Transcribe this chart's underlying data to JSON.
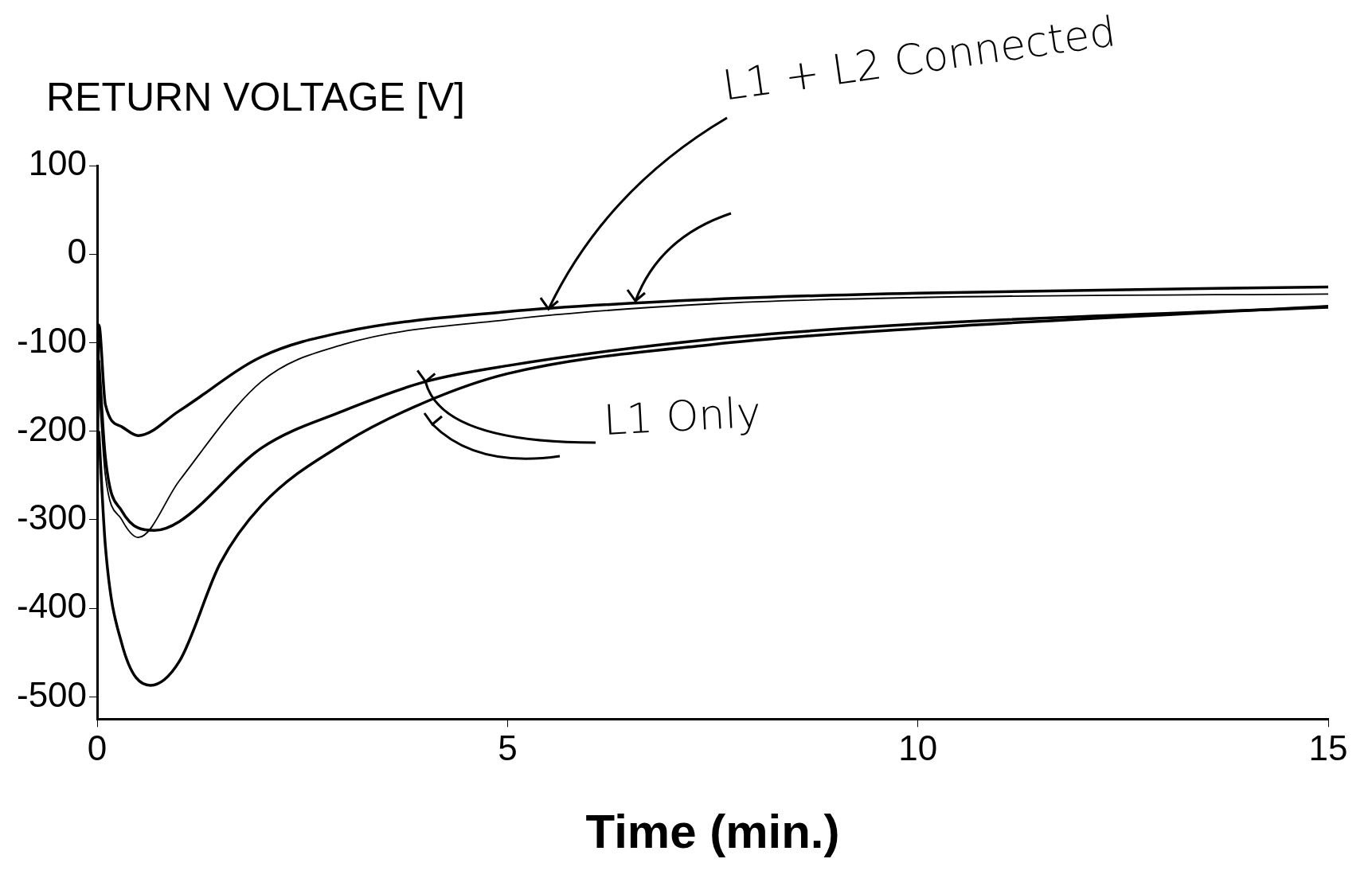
{
  "chart_data": {
    "type": "line",
    "ylabel": "RETURN VOLTAGE [V]",
    "xlabel": "Time (min.)",
    "annotations": [
      {
        "text": "L1 + L2 Connected",
        "x": 5.5,
        "y": -62
      },
      {
        "text": "L1 Only",
        "x": 4,
        "y": -144
      }
    ],
    "series": [
      {
        "color": "#000000",
        "x": [
          0,
          0.02,
          0.1,
          0.3,
          0.5,
          1,
          2,
          3,
          5,
          7.5,
          10,
          15
        ],
        "values": [
          -300,
          -80,
          -170,
          -195,
          -205,
          -177,
          -116,
          -88,
          -65,
          -51,
          -44,
          -37
        ]
      },
      {
        "color": "#000000",
        "x": [
          0.02,
          0.1,
          0.3,
          0.5,
          1,
          2,
          3,
          5,
          7.5,
          10,
          15
        ],
        "values": [
          -150,
          -250,
          -300,
          -320,
          -256,
          -144,
          -102,
          -74,
          -56,
          -49,
          -45
        ]
      },
      {
        "color": "#000000",
        "x": [
          0.02,
          0.1,
          0.3,
          0.7,
          1,
          2,
          3,
          4,
          5,
          7.5,
          10,
          15
        ],
        "values": [
          -120,
          -230,
          -290,
          -312,
          -302,
          -219,
          -177,
          -144,
          -126,
          -96,
          -79,
          -60
        ]
      },
      {
        "color": "#000000",
        "x": [
          0.02,
          0.1,
          0.3,
          0.65,
          1,
          1.5,
          2,
          3,
          4,
          5,
          7.5,
          10,
          15
        ],
        "values": [
          -200,
          -330,
          -440,
          -487,
          -460,
          -349,
          -284,
          -214,
          -167,
          -135,
          -102,
          -84,
          -59
        ]
      }
    ],
    "xlim": [
      0,
      15
    ],
    "xticks": [
      0,
      5,
      10,
      15
    ],
    "ylim": [
      -525,
      100
    ],
    "yticks": [
      -500,
      -400,
      -300,
      -200,
      -100,
      0,
      100
    ],
    "grid": false,
    "legend": false,
    "marker": "none",
    "line_style": "solid"
  }
}
